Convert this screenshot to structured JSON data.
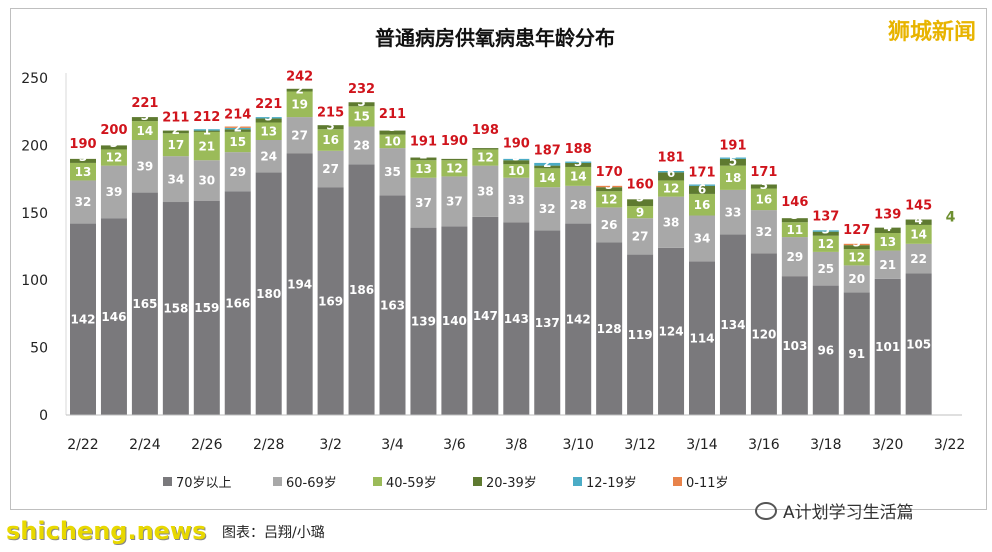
{
  "chart_data": {
    "type": "bar",
    "stacked": true,
    "title": "普通病房供氧病患年龄分布",
    "xlabel": "",
    "ylabel": "",
    "ylim": [
      0,
      250
    ],
    "yticks": [
      0,
      50,
      100,
      150,
      200,
      250
    ],
    "categories": [
      "2/22",
      "2/23",
      "2/24",
      "2/25",
      "2/26",
      "2/27",
      "2/28",
      "3/1",
      "3/2",
      "3/3",
      "3/4",
      "3/5",
      "3/6",
      "3/7",
      "3/8",
      "3/9",
      "3/10",
      "3/11",
      "3/12",
      "3/13",
      "3/14",
      "3/15",
      "3/16",
      "3/17",
      "3/18",
      "3/19",
      "3/20",
      "3/21"
    ],
    "xtick_labels": [
      "2/22",
      "2/24",
      "2/26",
      "2/28",
      "3/2",
      "3/4",
      "3/6",
      "3/8",
      "3/10",
      "3/12",
      "3/14",
      "3/16",
      "3/18",
      "3/20",
      "3/22"
    ],
    "grid": false,
    "legend_position": "bottom",
    "series": [
      {
        "name": "70岁以上",
        "color": "#7a797c",
        "values": [
          142,
          146,
          165,
          158,
          159,
          166,
          180,
          194,
          169,
          186,
          163,
          139,
          140,
          147,
          143,
          137,
          142,
          128,
          119,
          124,
          114,
          134,
          120,
          103,
          96,
          91,
          101,
          105
        ]
      },
      {
        "name": "60-69岁",
        "color": "#a8a8a8",
        "values": [
          32,
          39,
          39,
          34,
          30,
          29,
          24,
          27,
          27,
          28,
          35,
          37,
          37,
          38,
          33,
          32,
          28,
          26,
          27,
          38,
          34,
          33,
          32,
          29,
          25,
          20,
          21,
          22
        ]
      },
      {
        "name": "40-59岁",
        "color": "#9bbb59",
        "values": [
          13,
          12,
          14,
          17,
          21,
          15,
          13,
          19,
          16,
          15,
          10,
          13,
          12,
          12,
          10,
          14,
          14,
          12,
          9,
          12,
          16,
          18,
          16,
          11,
          12,
          12,
          13,
          14
        ]
      },
      {
        "name": "20-39岁",
        "color": "#5e7a30",
        "values": [
          3,
          3,
          3,
          2,
          1,
          2,
          3,
          2,
          3,
          3,
          3,
          2,
          1,
          1,
          3,
          2,
          3,
          3,
          5,
          6,
          6,
          5,
          3,
          3,
          3,
          3,
          4,
          4
        ]
      },
      {
        "name": "12-19岁",
        "color": "#4bacc6",
        "values": [
          0,
          0,
          0,
          0,
          1,
          1,
          1,
          0,
          0,
          0,
          0,
          0,
          0,
          0,
          1,
          2,
          1,
          0,
          0,
          1,
          1,
          1,
          0,
          0,
          1,
          0,
          0,
          0
        ]
      },
      {
        "name": "0-11岁",
        "color": "#e8834a",
        "values": [
          0,
          0,
          0,
          0,
          0,
          1,
          0,
          0,
          0,
          0,
          0,
          0,
          0,
          0,
          0,
          0,
          0,
          1,
          0,
          0,
          0,
          0,
          0,
          0,
          0,
          1,
          0,
          0
        ]
      }
    ],
    "totals": [
      190,
      200,
      221,
      211,
      212,
      214,
      221,
      242,
      215,
      232,
      211,
      191,
      190,
      198,
      190,
      187,
      188,
      170,
      160,
      181,
      171,
      191,
      171,
      146,
      137,
      127,
      139,
      145
    ]
  },
  "watermark_top": "狮城新闻",
  "watermark_bottom": "shicheng.news",
  "credit": "图表：吕翔/小璐",
  "wechat_account": "A计划学习生活篇"
}
